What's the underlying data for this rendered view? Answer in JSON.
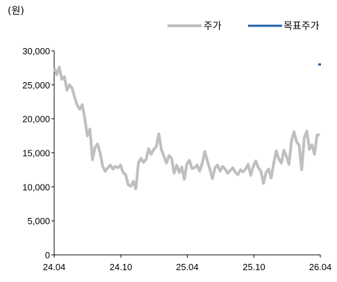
{
  "chart_data": {
    "type": "line",
    "unit_label": "(원)",
    "ylim": [
      0,
      30000
    ],
    "y_ticks": [
      "0",
      "5,000",
      "10,000",
      "15,000",
      "20,000",
      "25,000",
      "30,000"
    ],
    "y_tick_values": [
      0,
      5000,
      10000,
      15000,
      20000,
      25000,
      30000
    ],
    "x_ticks": [
      "24.04",
      "24.10",
      "25.04",
      "25.10",
      "26.04"
    ],
    "x_tick_values": [
      "2024-04",
      "2024-10",
      "2025-04",
      "2025-10",
      "2026-04"
    ],
    "legend_position": "top-right",
    "series": [
      {
        "name": "주가",
        "color": "#bfbfbf",
        "style": "line",
        "x": [
          "2024-04-01",
          "2024-04-08",
          "2024-04-15",
          "2024-04-22",
          "2024-04-29",
          "2024-05-06",
          "2024-05-13",
          "2024-05-20",
          "2024-05-27",
          "2024-06-03",
          "2024-06-10",
          "2024-06-17",
          "2024-06-24",
          "2024-07-01",
          "2024-07-08",
          "2024-07-15",
          "2024-07-22",
          "2024-07-29",
          "2024-08-05",
          "2024-08-12",
          "2024-08-19",
          "2024-08-26",
          "2024-09-02",
          "2024-09-09",
          "2024-09-16",
          "2024-09-23",
          "2024-09-30",
          "2024-10-07",
          "2024-10-14",
          "2024-10-21",
          "2024-10-28",
          "2024-11-04",
          "2024-11-11",
          "2024-11-18",
          "2024-11-25",
          "2024-12-02",
          "2024-12-09",
          "2024-12-16",
          "2024-12-23",
          "2024-12-30",
          "2025-01-06",
          "2025-01-13",
          "2025-01-20",
          "2025-01-27",
          "2025-02-03",
          "2025-02-10",
          "2025-02-17",
          "2025-02-24",
          "2025-03-03",
          "2025-03-10",
          "2025-03-17",
          "2025-03-24",
          "2025-03-31",
          "2025-04-07",
          "2025-04-14",
          "2025-04-21",
          "2025-04-28",
          "2025-05-05",
          "2025-05-12",
          "2025-05-19",
          "2025-05-26",
          "2025-06-02",
          "2025-06-09",
          "2025-06-16",
          "2025-06-23",
          "2025-06-30",
          "2025-07-07",
          "2025-07-14",
          "2025-07-21",
          "2025-07-28",
          "2025-08-04",
          "2025-08-11",
          "2025-08-18",
          "2025-08-25",
          "2025-09-01",
          "2025-09-08",
          "2025-09-15",
          "2025-09-22",
          "2025-09-29",
          "2025-10-06",
          "2025-10-13",
          "2025-10-20",
          "2025-10-27",
          "2025-11-03",
          "2025-11-10",
          "2025-11-17",
          "2025-11-24",
          "2025-12-01",
          "2025-12-08",
          "2025-12-15",
          "2025-12-22",
          "2025-12-29",
          "2026-01-05",
          "2026-01-12",
          "2026-01-19",
          "2026-01-26",
          "2026-02-02",
          "2026-02-09",
          "2026-02-16",
          "2026-02-23",
          "2026-03-02",
          "2026-03-09",
          "2026-03-16",
          "2026-03-23",
          "2026-03-30"
        ],
        "values": [
          27500,
          26500,
          27600,
          25800,
          26200,
          24200,
          25000,
          24500,
          23200,
          22000,
          21400,
          22100,
          20000,
          17500,
          18500,
          14000,
          15800,
          16300,
          15000,
          13000,
          12300,
          12800,
          13200,
          12600,
          13000,
          12800,
          13200,
          12100,
          11800,
          10300,
          10100,
          10800,
          9700,
          13500,
          14200,
          13600,
          14000,
          15600,
          14800,
          15500,
          15900,
          17800,
          15500,
          14500,
          13500,
          14600,
          14200,
          12000,
          13200,
          12100,
          12900,
          11100,
          13400,
          13900,
          12700,
          12800,
          13200,
          12300,
          13400,
          15200,
          13800,
          12600,
          11200,
          12800,
          13200,
          12300,
          13000,
          12600,
          12000,
          12400,
          12800,
          12100,
          11800,
          12500,
          12200,
          12600,
          13300,
          11700,
          13000,
          13800,
          12800,
          12300,
          10500,
          12100,
          12600,
          11300,
          13400,
          15300,
          14100,
          13500,
          15400,
          14500,
          13300,
          16800,
          18100,
          16600,
          16100,
          12500,
          17200,
          18200,
          15500,
          16200,
          14800,
          17600,
          17700
        ]
      },
      {
        "name": "목표주가",
        "color": "#1f5fa8",
        "style": "line",
        "x": [
          "2026-03-30"
        ],
        "values": [
          28000
        ]
      }
    ]
  }
}
